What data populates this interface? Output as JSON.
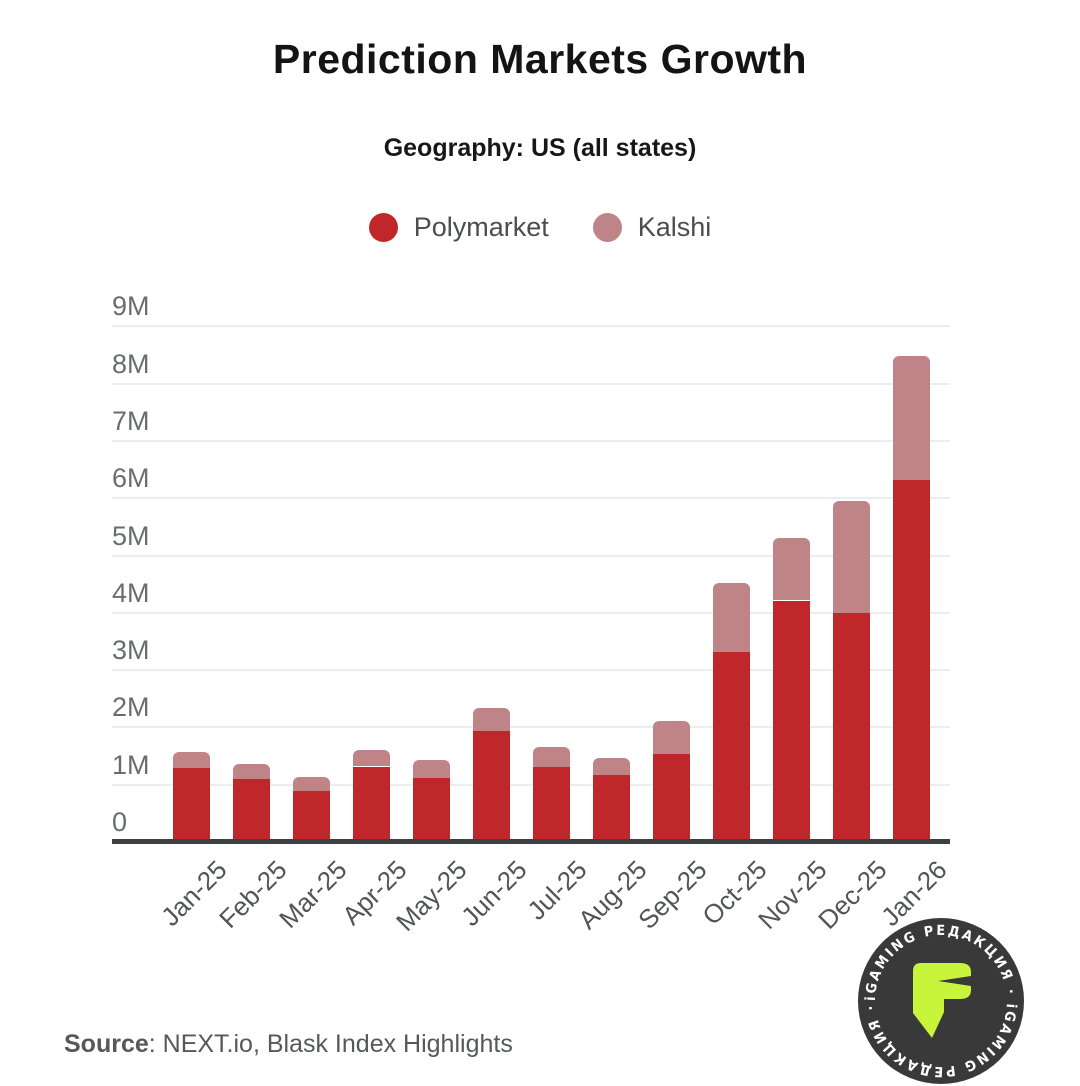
{
  "title": "Prediction Markets Growth",
  "subtitle": "Geography: US (all states)",
  "legend": {
    "items": [
      {
        "label": "Polymarket",
        "color": "#c0272b"
      },
      {
        "label": "Kalshi",
        "color": "#bf8487"
      }
    ]
  },
  "source": {
    "label": "Source",
    "rest": ": NEXT.io, Blask Index Highlights"
  },
  "badge": {
    "ring_text": "iGAMING РЕДАКЦИЯ · iGAMING РЕДАКЦИЯ · ",
    "logo_letter": "P",
    "bg_color": "#393939",
    "accent_color": "#c8f43c",
    "text_color": "#ffffff"
  },
  "chart_data": {
    "type": "bar",
    "stacked": true,
    "title": "Prediction Markets Growth",
    "subtitle": "Geography: US (all states)",
    "categories": [
      "Jan-25",
      "Feb-25",
      "Mar-25",
      "Apr-25",
      "May-25",
      "Jun-25",
      "Jul-25",
      "Aug-25",
      "Sep-25",
      "Oct-25",
      "Nov-25",
      "Dec-25",
      "Jan-26"
    ],
    "series": [
      {
        "name": "Polymarket",
        "color": "#c0272b",
        "values": [
          1.28,
          1.08,
          0.88,
          1.3,
          1.1,
          1.92,
          1.29,
          1.15,
          1.51,
          3.3,
          4.19,
          3.98,
          6.3
        ]
      },
      {
        "name": "Kalshi",
        "color": "#bf8487",
        "values": [
          0.28,
          0.26,
          0.24,
          0.28,
          0.32,
          0.4,
          0.35,
          0.3,
          0.58,
          1.2,
          1.09,
          1.95,
          2.17
        ]
      }
    ],
    "unit": "M",
    "yticks": [
      "9M",
      "8M",
      "7M",
      "6M",
      "5M",
      "4M",
      "3M",
      "2M",
      "1M",
      "0"
    ],
    "ytick_values": [
      9,
      8,
      7,
      6,
      5,
      4,
      3,
      2,
      1,
      0
    ],
    "ylim": [
      0,
      9
    ],
    "grid": true,
    "legend_position": "top",
    "xlabel": "",
    "ylabel": ""
  }
}
